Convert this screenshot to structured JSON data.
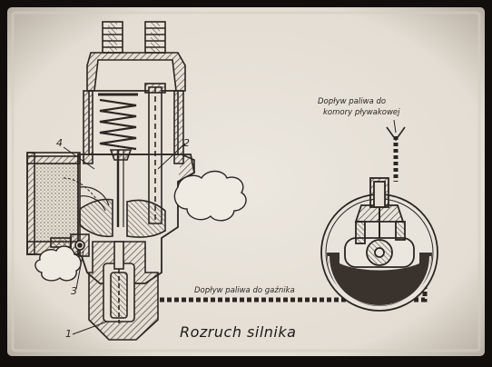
{
  "labels": {
    "n1": "1",
    "n2": "2",
    "n3": "3",
    "n4": "4",
    "fuel_to_float_line1": "Dopływ paliwa do",
    "fuel_to_float_line2": "komory pływakowej",
    "fuel_to_carburetor": "Dopływ paliwa do gaźnika",
    "caption": "Rozruch silnika"
  }
}
